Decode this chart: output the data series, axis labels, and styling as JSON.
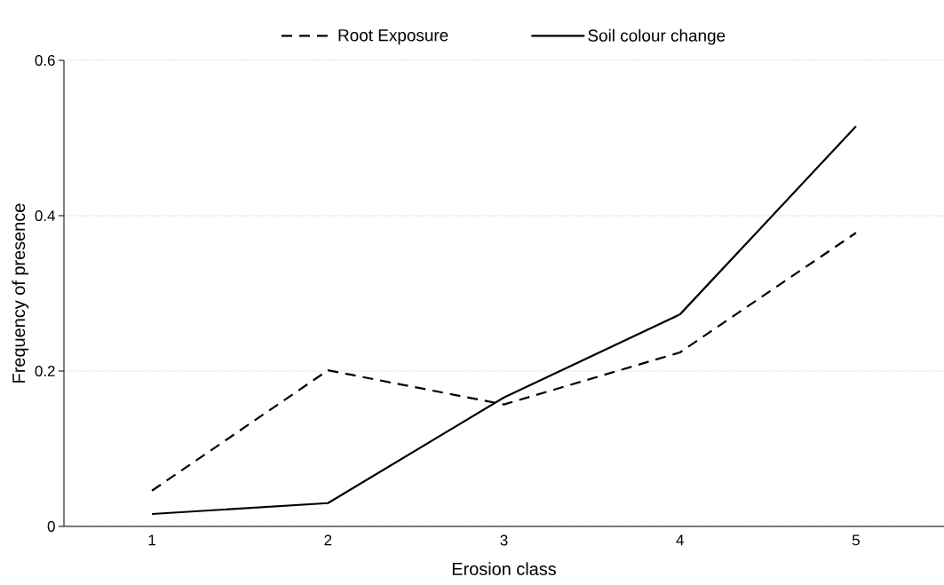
{
  "chart_data": {
    "type": "line",
    "xlabel": "Erosion class",
    "ylabel": "Frequency of presence",
    "categories": [
      "1",
      "2",
      "3",
      "4",
      "5"
    ],
    "series": [
      {
        "name": "Root Exposure",
        "color": "#000000",
        "line_style": "dashed",
        "values": [
          0.046,
          0.201,
          0.157,
          0.224,
          0.378
        ]
      },
      {
        "name": "Soil colour change",
        "color": "#000000",
        "line_style": "solid",
        "values": [
          0.016,
          0.03,
          0.166,
          0.273,
          0.515
        ]
      }
    ],
    "ylim": [
      0,
      0.6
    ],
    "yticks": [
      0,
      0.2,
      0.4,
      0.6
    ],
    "grid": "y",
    "legend": "top",
    "marker": "none"
  }
}
